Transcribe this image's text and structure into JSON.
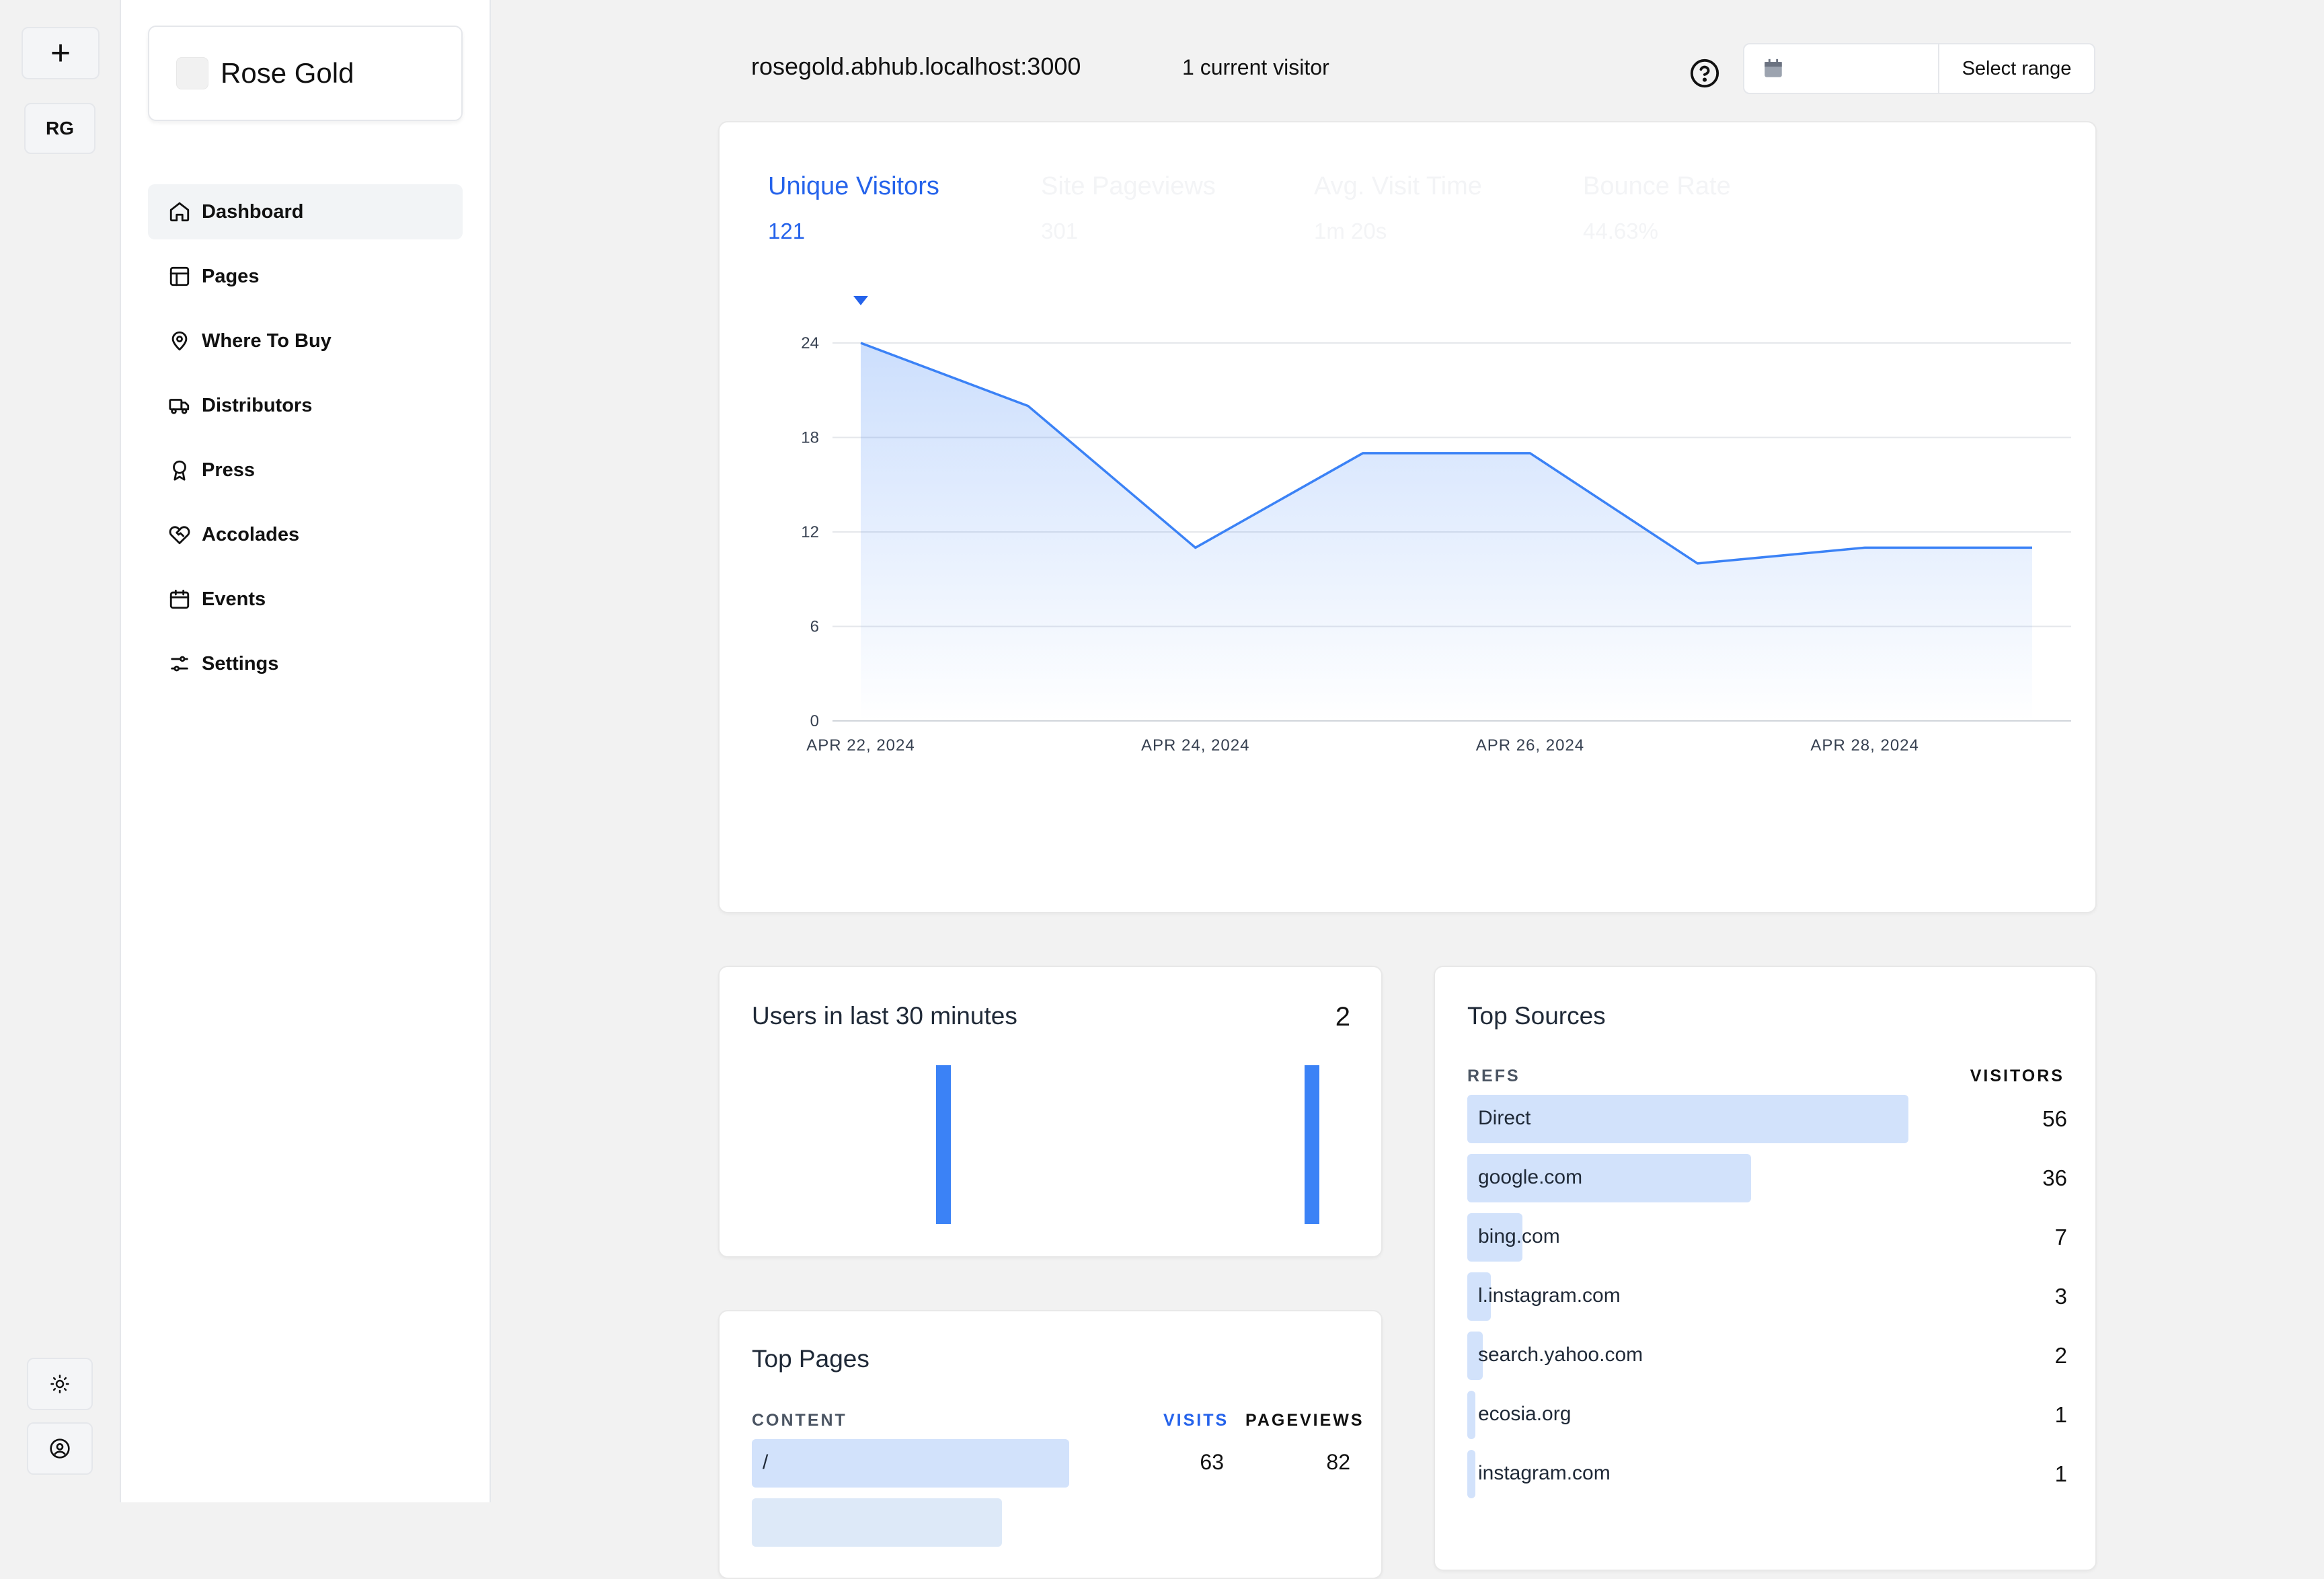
{
  "rail": {
    "plus_label": "+",
    "workspace_initials": "RG"
  },
  "brand": {
    "name": "Rose Gold"
  },
  "nav": [
    {
      "label": "Dashboard",
      "icon": "home-icon",
      "active": true
    },
    {
      "label": "Pages",
      "icon": "layout-icon"
    },
    {
      "label": "Where To Buy",
      "icon": "map-pin-icon"
    },
    {
      "label": "Distributors",
      "icon": "truck-icon"
    },
    {
      "label": "Press",
      "icon": "award-icon"
    },
    {
      "label": "Accolades",
      "icon": "heart-handshake-icon"
    },
    {
      "label": "Events",
      "icon": "calendar-icon"
    },
    {
      "label": "Settings",
      "icon": "sliders-icon"
    }
  ],
  "header": {
    "site": "rosegold.abhub.localhost:3000",
    "visitors": "1 current visitor",
    "range_label": "Select range",
    "date_value": ""
  },
  "tabs": [
    {
      "label": "Unique Visitors",
      "value": "121",
      "active": true
    },
    {
      "label": "Site Pageviews",
      "value": "301"
    },
    {
      "label": "Avg. Visit Time",
      "value": "1m 20s"
    },
    {
      "label": "Bounce Rate",
      "value": "44.63%"
    }
  ],
  "chart_data": {
    "type": "area",
    "x": [
      "2024-04-22",
      "2024-04-23",
      "2024-04-24",
      "2024-04-25",
      "2024-04-26",
      "2024-04-27",
      "2024-04-28",
      "2024-04-29"
    ],
    "series": [
      {
        "values": [
          24,
          20,
          11,
          17,
          17,
          10,
          11,
          11
        ]
      }
    ],
    "ylim": [
      0,
      24
    ],
    "yticks": [
      "0",
      "6",
      "12",
      "18",
      "24"
    ],
    "xticks": [
      "APR 22, 2024",
      "APR 24, 2024",
      "APR 26, 2024",
      "APR 28, 2024"
    ],
    "xtick_index": [
      0,
      2,
      4,
      6
    ],
    "grid": true,
    "color": "#3b82f6"
  },
  "users_card": {
    "title": "Users in last 30 minutes",
    "count": "2"
  },
  "top_pages": {
    "title": "Top Pages",
    "col_content": "CONTENT",
    "col_visits": "VISITS",
    "col_pageviews": "PAGEVIEWS",
    "rows": [
      {
        "label": "/",
        "visits": "63",
        "pageviews": "82"
      }
    ]
  },
  "top_sources": {
    "title": "Top Sources",
    "col_refs": "REFS",
    "col_visitors": "VISITORS",
    "rows": [
      {
        "name": "Direct",
        "visitors": 56
      },
      {
        "name": "google.com",
        "visitors": 36
      },
      {
        "name": "bing.com",
        "visitors": 7
      },
      {
        "name": "l.instagram.com",
        "visitors": 3
      },
      {
        "name": "search.yahoo.com",
        "visitors": 2
      },
      {
        "name": "ecosia.org",
        "visitors": 1
      },
      {
        "name": "instagram.com",
        "visitors": 1
      }
    ]
  }
}
